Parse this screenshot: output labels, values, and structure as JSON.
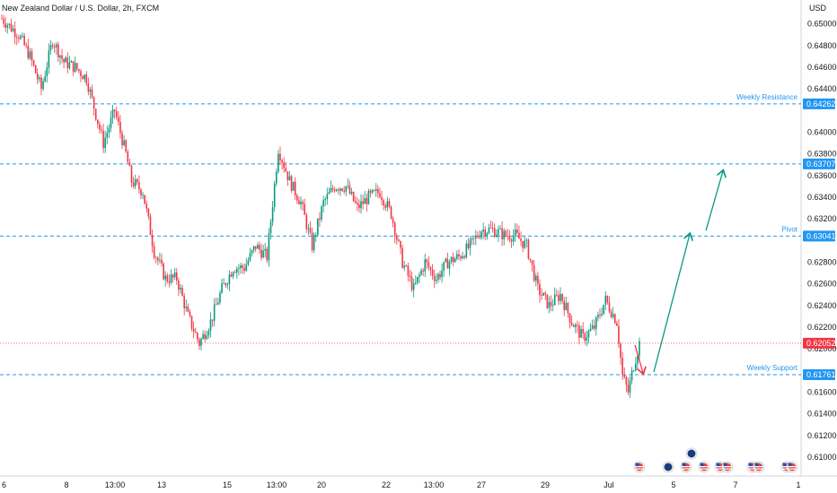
{
  "chart_data": {
    "type": "candlestick",
    "title": "New Zealand Dollar / U.S. Dollar, 2h, FXCM",
    "currency": "USD",
    "ylim": [
      0.609,
      0.6518
    ],
    "yticks": [
      0.65,
      0.648,
      0.646,
      0.644,
      0.64,
      0.638,
      0.636,
      0.634,
      0.632,
      0.628,
      0.626,
      0.624,
      0.622,
      0.62,
      0.616,
      0.614,
      0.612,
      0.61
    ],
    "ytick_labels": [
      "0.65000",
      "0.64800",
      "0.64600",
      "0.64400",
      "0.64000",
      "0.63800",
      "0.63600",
      "0.63400",
      "0.63200",
      "0.62800",
      "0.62600",
      "0.62400",
      "0.62200",
      "0.62000",
      "0.61600",
      "0.61400",
      "0.61200",
      "0.61000"
    ],
    "xlabels": [
      "6",
      "8",
      "13:00",
      "13",
      "15",
      "13:00",
      "20",
      "22",
      "13:00",
      "27",
      "29",
      "Jul",
      "5",
      "7",
      "1"
    ],
    "levels": [
      {
        "label": "Weekly Resistance",
        "value": 0.64262,
        "value_label": "0.64262"
      },
      {
        "label": "",
        "value": 0.63707,
        "value_label": "0.63707"
      },
      {
        "label": "Pivot",
        "value": 0.63041,
        "value_label": "0.63041"
      },
      {
        "label": "Weekly Support",
        "value": 0.61761,
        "value_label": "0.61761"
      }
    ],
    "current_price": {
      "value": 0.62052,
      "value_label": "0.62052"
    },
    "price_path": [
      {
        "t": 0,
        "p": 0.6505
      },
      {
        "t": 3,
        "p": 0.649
      },
      {
        "t": 5,
        "p": 0.647
      },
      {
        "t": 7,
        "p": 0.644
      },
      {
        "t": 9,
        "p": 0.6485
      },
      {
        "t": 11,
        "p": 0.6465
      },
      {
        "t": 13,
        "p": 0.646
      },
      {
        "t": 15,
        "p": 0.645
      },
      {
        "t": 17,
        "p": 0.641
      },
      {
        "t": 18,
        "p": 0.639
      },
      {
        "t": 20,
        "p": 0.642
      },
      {
        "t": 22,
        "p": 0.638
      },
      {
        "t": 23,
        "p": 0.6355
      },
      {
        "t": 25,
        "p": 0.6345
      },
      {
        "t": 27,
        "p": 0.629
      },
      {
        "t": 29,
        "p": 0.6265
      },
      {
        "t": 31,
        "p": 0.6265
      },
      {
        "t": 33,
        "p": 0.623
      },
      {
        "t": 35,
        "p": 0.6205
      },
      {
        "t": 37,
        "p": 0.6225
      },
      {
        "t": 39,
        "p": 0.6255
      },
      {
        "t": 41,
        "p": 0.6275
      },
      {
        "t": 43,
        "p": 0.6275
      },
      {
        "t": 45,
        "p": 0.6295
      },
      {
        "t": 47,
        "p": 0.6285
      },
      {
        "t": 49,
        "p": 0.6385
      },
      {
        "t": 51,
        "p": 0.6355
      },
      {
        "t": 53,
        "p": 0.6335
      },
      {
        "t": 55,
        "p": 0.6295
      },
      {
        "t": 57,
        "p": 0.6335
      },
      {
        "t": 59,
        "p": 0.635
      },
      {
        "t": 61,
        "p": 0.635
      },
      {
        "t": 63,
        "p": 0.633
      },
      {
        "t": 65,
        "p": 0.634
      },
      {
        "t": 67,
        "p": 0.6345
      },
      {
        "t": 69,
        "p": 0.6325
      },
      {
        "t": 71,
        "p": 0.628
      },
      {
        "t": 73,
        "p": 0.6255
      },
      {
        "t": 75,
        "p": 0.628
      },
      {
        "t": 77,
        "p": 0.6265
      },
      {
        "t": 79,
        "p": 0.628
      },
      {
        "t": 81,
        "p": 0.6285
      },
      {
        "t": 83,
        "p": 0.6295
      },
      {
        "t": 85,
        "p": 0.631
      },
      {
        "t": 87,
        "p": 0.631
      },
      {
        "t": 89,
        "p": 0.6305
      },
      {
        "t": 91,
        "p": 0.6305
      },
      {
        "t": 93,
        "p": 0.6295
      },
      {
        "t": 95,
        "p": 0.6255
      },
      {
        "t": 97,
        "p": 0.624
      },
      {
        "t": 99,
        "p": 0.625
      },
      {
        "t": 101,
        "p": 0.6225
      },
      {
        "t": 103,
        "p": 0.621
      },
      {
        "t": 105,
        "p": 0.622
      },
      {
        "t": 107,
        "p": 0.6245
      },
      {
        "t": 109,
        "p": 0.6225
      },
      {
        "t": 110,
        "p": 0.6175
      },
      {
        "t": 111,
        "p": 0.616
      },
      {
        "t": 112,
        "p": 0.6185
      },
      {
        "t": 113,
        "p": 0.6205
      }
    ],
    "projection": [
      {
        "x": "Jul+",
        "p": 0.62052
      },
      {
        "x": "Jul++",
        "p": 0.61761
      },
      {
        "x": "5",
        "p": 0.63041
      },
      {
        "x": "7",
        "p": 0.636
      }
    ],
    "grid": false
  }
}
